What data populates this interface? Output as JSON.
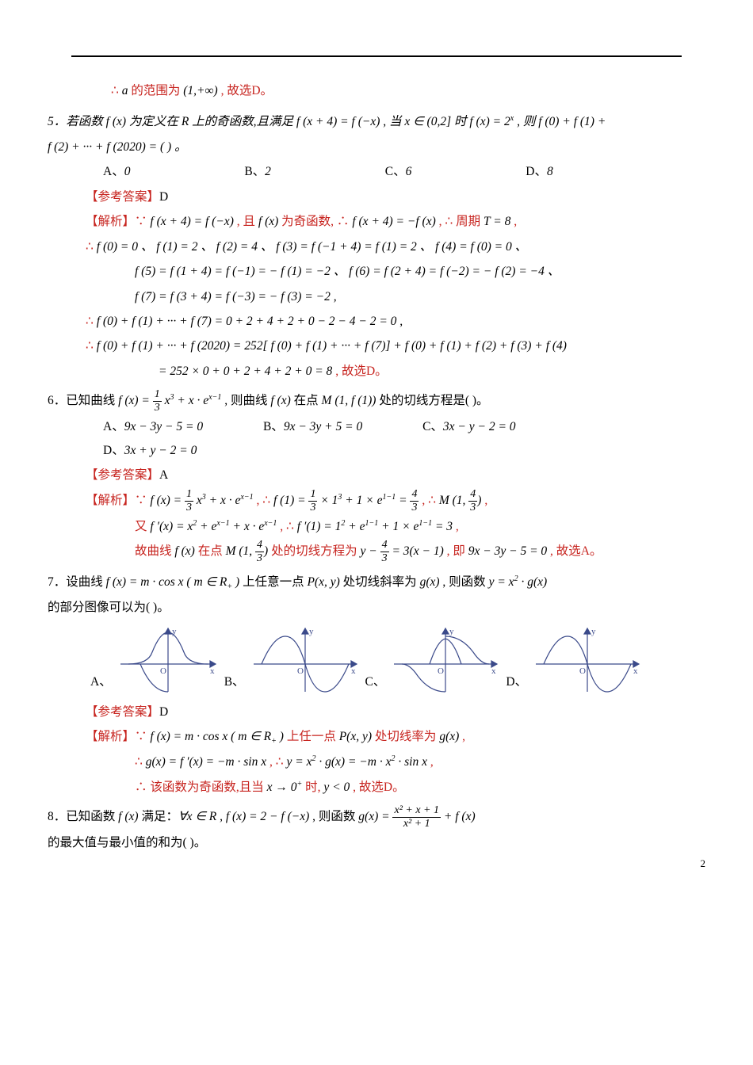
{
  "colors": {
    "red": "#c7241f",
    "blue": "#0a1b7a",
    "black": "#000000",
    "axis": "#3b4a8a"
  },
  "top": {
    "line1": "∴ a 的范围为 (1,+∞) , 故选D。"
  },
  "q5": {
    "stem_a": "5．若函数 f (x) 为定义在 R 上的奇函数,且满足 f (x + 4) = f (−x) , 当 x ∈ (0,2] 时 f (x) = 2",
    "stem_b": ", 则 f (0) + f (1) +",
    "stem2": "f (2) + ··· + f (2020) = (  ) 。",
    "opts": {
      "A": "0",
      "B": "2",
      "C": "6",
      "D": "8"
    },
    "answer": "【参考答案】D",
    "sol1": "【解析】∵ f (x + 4) = f (−x) , 且 f (x) 为奇函数, ∴ f (x + 4) = − f (x) , ∴ 周期 T = 8 ,",
    "sol2": "∴ f (0) = 0 、 f (1) = 2 、 f (2) = 4 、 f (3) = f (−1 + 4) = f (1) = 2 、 f (4) = f (0) = 0 、",
    "sol3": "f (5) = f (1 + 4) = f (−1) = − f (1) = −2 、 f (6) = f (2 + 4) = f (−2) = − f (2) = −4 、",
    "sol4": "f (7) = f (3 + 4) = f (−3) = − f (3) = −2 ,",
    "sol5": "∴ f (0) + f (1) + ··· + f (7) = 0 + 2 + 4 + 2 + 0 − 2 − 4 − 2 = 0 ,",
    "sol6": "∴ f (0) + f (1) + ··· + f (2020) = 252[ f (0) + f (1) + ··· + f (7)] + f (0) + f (1) + f (2) + f (3) + f (4)",
    "sol7": "= 252 × 0 + 0 + 2 + 4 + 2 + 0 = 8 , 故选D。"
  },
  "q6": {
    "stem_a": "6．已知曲线 f (x) = ",
    "stem_b": " x",
    "stem_c": " + x · e",
    "stem_d": " , 则曲线 f (x) 在点 M (1, f (1)) 处的切线方程是(  )。",
    "opts": {
      "A": "9x − 3y − 5 = 0",
      "B": "9x − 3y + 5 = 0",
      "C": "3x − y − 2 = 0",
      "D": "3x + y − 2 = 0"
    },
    "answer": "【参考答案】A",
    "sol1_a": "【解析】∵ f (x) = ",
    "sol1_b": " x",
    "sol1_c": " + x · e",
    "sol1_d": " , ∴ f (1) = ",
    "sol1_e": " × 1",
    "sol1_f": " + 1 × e",
    "sol1_g": " = ",
    "sol1_h": " , ∴ M (1, ",
    "sol1_i": ") ,",
    "sol2_a": "又 f ′(x) = x",
    "sol2_b": " + e",
    "sol2_c": " + x · e",
    "sol2_d": " , ∴ f ′(1) = 1",
    "sol2_e": " + e",
    "sol2_f": " + 1 × e",
    "sol2_g": " = 3 ,",
    "sol3_a": "故曲线 f (x) 在点 M (1, ",
    "sol3_b": ") 处的切线方程为 y − ",
    "sol3_c": " = 3(x − 1) , 即 9x − 3y − 5 = 0 , 故选A。"
  },
  "q7": {
    "stem": "7．设曲线 f (x) = m · cos x ( m ∈ R₊ ) 上任意一点 P(x, y) 处切线斜率为 g(x) , 则函数 y = x² · g(x)",
    "stem2": "的部分图像可以为(  )。",
    "opts": {
      "A": "A、",
      "B": "B、",
      "C": "C、",
      "D": "D、"
    },
    "answer": "【参考答案】D",
    "sol1": "【解析】∵ f (x) = m · cos x ( m ∈ R₊ ) 上任一点 P(x, y) 处切线率为 g(x) ,",
    "sol2": "∴ g(x) = f ′(x) = −m · sin x , ∴ y = x² · g(x) = −m · x² · sin x ,",
    "sol3": "∴ 该函数为奇函数,且当 x → 0⁺ 时, y < 0 , 故选D。"
  },
  "q8": {
    "stem_a": "8．已知函数 f (x) 满足：∀x ∈ R , f (x) = 2 − f (−x) , 则函数 g(x) = ",
    "stem_b": " + f (x)",
    "stem2": "的最大值与最小值的和为(  )。",
    "frac_num": "x² + x + 1",
    "frac_den": "x² + 1"
  },
  "page_num": "2",
  "graphs": {
    "axis_color": "#3b4a8a",
    "curve_color": "#3b4a8a",
    "label_y": "y",
    "label_x": "x",
    "label_o": "O"
  }
}
